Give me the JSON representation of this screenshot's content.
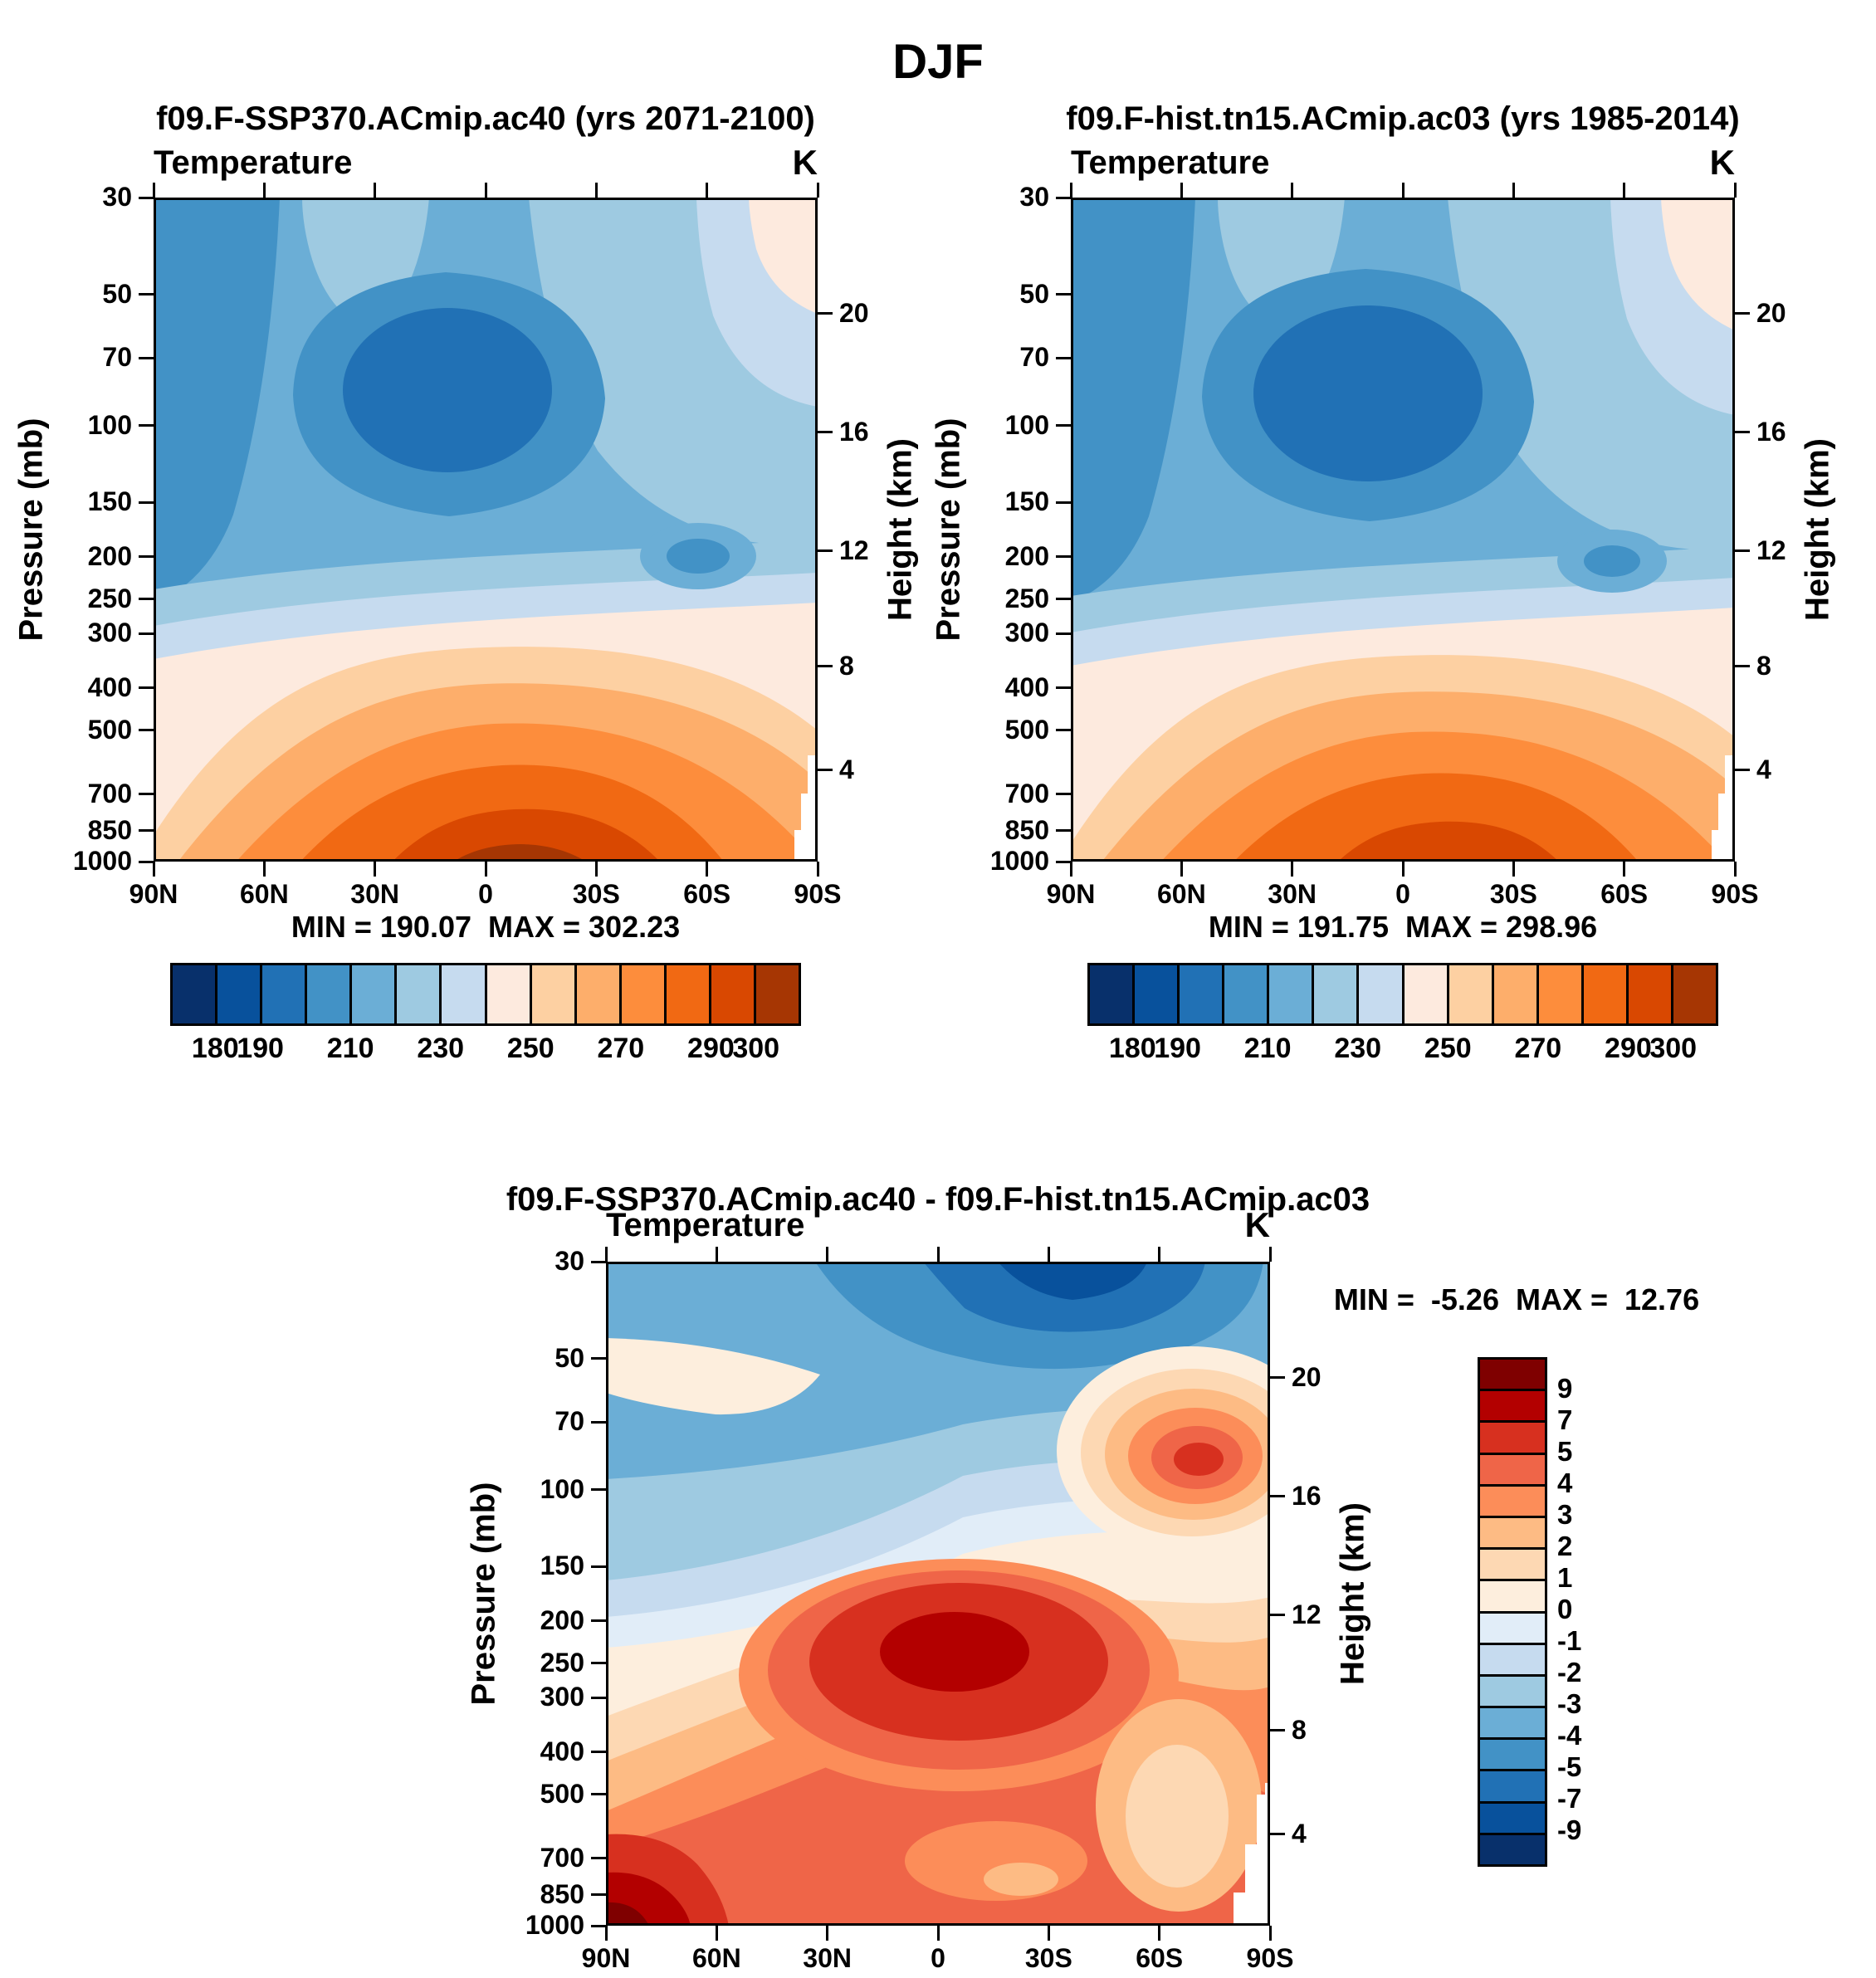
{
  "title": "DJF",
  "chart_data": {
    "type": "heatmap",
    "subtype": "zonal-mean latitude-pressure filled contour cross sections",
    "season": "DJF",
    "field_label": "Temperature",
    "units_label": "K",
    "pressure_axis_label": "Pressure (mb)",
    "height_axis_label": "Height (km)",
    "pressure_range": [
      30,
      1000
    ],
    "pressure_ticks": [
      30,
      50,
      70,
      100,
      150,
      200,
      250,
      300,
      400,
      500,
      700,
      850,
      1000
    ],
    "height_ticks": [
      20,
      16,
      12,
      8,
      4
    ],
    "height_tick_pressures": [
      55.3,
      103.5,
      194,
      356.5,
      616.6
    ],
    "lat_ticks": [
      "90N",
      "60N",
      "30N",
      "0",
      "30S",
      "60S",
      "90S"
    ],
    "panels": [
      {
        "id": "ssp370",
        "title": "f09.F-SSP370.ACmip.ac40 (yrs 2071-2100)",
        "min": 190.07,
        "max": 302.23,
        "minmax_text": "MIN = 190.07  MAX = 302.23",
        "colorbar": {
          "orientation": "horizontal",
          "levels": [
            180,
            190,
            200,
            210,
            220,
            230,
            240,
            250,
            260,
            270,
            280,
            290,
            300
          ],
          "tick_labels": [
            180,
            190,
            210,
            230,
            250,
            270,
            290,
            300
          ],
          "colors": [
            "#08306b",
            "#08519c",
            "#2171b5",
            "#4292c6",
            "#6baed6",
            "#9ecae1",
            "#c6dbef",
            "#fdeade",
            "#fdd0a2",
            "#fdae6b",
            "#fd8d3c",
            "#f16913",
            "#d94801",
            "#a63603"
          ]
        },
        "approx_field_K": {
          "latitudes": [
            "90N",
            "60N",
            "30N",
            "0",
            "30S",
            "60S",
            "90S"
          ],
          "pressures_mb": [
            50,
            100,
            200,
            300,
            500,
            850
          ],
          "values": [
            [
              204,
              208,
              216,
              222,
              226,
              233,
              240
            ],
            [
              208,
              211,
              201,
              192,
              196,
              211,
              223
            ],
            [
              214,
              213,
              206,
              201,
              204,
              216,
              226
            ],
            [
              223,
              226,
              236,
              243,
              241,
              231,
              226
            ],
            [
              241,
              249,
              261,
              269,
              267,
              256,
              243
            ],
            [
              253,
              263,
              283,
              295,
              293,
              273,
              250
            ]
          ]
        }
      },
      {
        "id": "hist",
        "title": "f09.F-hist.tn15.ACmip.ac03 (yrs 1985-2014)",
        "min": 191.75,
        "max": 298.96,
        "minmax_text": "MIN = 191.75  MAX = 298.96",
        "colorbar": {
          "orientation": "horizontal",
          "levels": [
            180,
            190,
            200,
            210,
            220,
            230,
            240,
            250,
            260,
            270,
            280,
            290,
            300
          ],
          "tick_labels": [
            180,
            190,
            210,
            230,
            250,
            270,
            290,
            300
          ],
          "colors": [
            "#08306b",
            "#08519c",
            "#2171b5",
            "#4292c6",
            "#6baed6",
            "#9ecae1",
            "#c6dbef",
            "#fdeade",
            "#fdd0a2",
            "#fdae6b",
            "#fd8d3c",
            "#f16913",
            "#d94801",
            "#a63603"
          ]
        },
        "approx_field_K": {
          "latitudes": [
            "90N",
            "60N",
            "30N",
            "0",
            "30S",
            "60S",
            "90S"
          ],
          "pressures_mb": [
            50,
            100,
            200,
            300,
            500,
            850
          ],
          "values": [
            [
              206,
              210,
              217,
              224,
              227,
              234,
              241
            ],
            [
              209,
              212,
              200,
              191,
              195,
              210,
              222
            ],
            [
              213,
              212,
              204,
              199,
              202,
              214,
              224
            ],
            [
              221,
              224,
              233,
              240,
              238,
              229,
              224
            ],
            [
              238,
              246,
              258,
              265,
              263,
              253,
              241
            ],
            [
              249,
              259,
              279,
              291,
              289,
              269,
              247
            ]
          ]
        }
      },
      {
        "id": "diff",
        "title": "f09.F-SSP370.ACmip.ac40 - f09.F-hist.tn15.ACmip.ac03",
        "min": -5.26,
        "max": 12.76,
        "minmax_text": "MIN =  -5.26  MAX =  12.76",
        "colorbar": {
          "orientation": "vertical",
          "levels": [
            9,
            7,
            5,
            4,
            3,
            2,
            1,
            0,
            -1,
            -2,
            -3,
            -4,
            -5,
            -7,
            -9
          ],
          "tick_labels": [
            9,
            7,
            5,
            4,
            3,
            2,
            1,
            0,
            -1,
            -2,
            -3,
            -4,
            -5,
            -7,
            -9
          ],
          "colors": [
            "#7f0000",
            "#b30000",
            "#d7301f",
            "#ef6548",
            "#fc8d59",
            "#fdbb84",
            "#fdd8b3",
            "#fdeedd",
            "#e1edf8",
            "#c6dbef",
            "#9ecae1",
            "#6baed6",
            "#4292c6",
            "#2171b5",
            "#08519c",
            "#08306b"
          ]
        },
        "approx_diff_K": {
          "latitudes": [
            "90N",
            "60N",
            "30N",
            "0",
            "30S",
            "60S",
            "90S"
          ],
          "pressures_mb": [
            50,
            100,
            200,
            300,
            500,
            850
          ],
          "values": [
            [
              -3,
              -4,
              -5,
              -5,
              -4,
              -1,
              4
            ],
            [
              -1,
              0,
              2,
              4,
              5,
              6,
              6
            ],
            [
              1,
              2,
              4,
              6,
              6,
              4,
              2
            ],
            [
              2,
              3,
              5,
              7,
              7,
              4,
              2
            ],
            [
              3,
              3,
              3,
              4,
              4,
              3,
              2
            ],
            [
              10,
              5,
              4,
              4,
              4,
              2,
              1
            ]
          ]
        }
      }
    ]
  }
}
